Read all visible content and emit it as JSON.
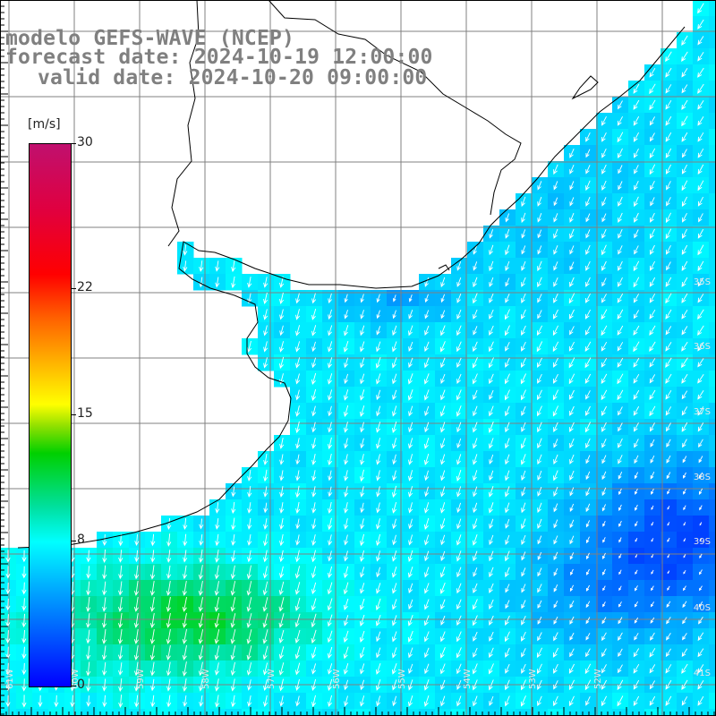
{
  "title": {
    "model": "modelo GEFS-WAVE (NCEP)",
    "forecast": "forecast date: 2024-10-19 12:00:00",
    "valid": "valid date: 2024-10-20 09:00:00"
  },
  "colorbar": {
    "units": "[m/s]",
    "ticks": [
      {
        "label": "30",
        "value": 30
      },
      {
        "label": "22",
        "value": 22
      },
      {
        "label": "15",
        "value": 15
      },
      {
        "label": "8",
        "value": 8
      },
      {
        "label": "0",
        "value": 0
      }
    ],
    "range": [
      0,
      30
    ]
  },
  "map": {
    "lat_labels": [
      "35S",
      "36S",
      "37S",
      "38S",
      "39S",
      "40S",
      "41S"
    ],
    "lon_labels": [
      "61W",
      "60W",
      "59W",
      "58W",
      "57W",
      "56W",
      "55W",
      "54W",
      "53W",
      "52W"
    ],
    "field": "wind speed and direction",
    "colors": {
      "land": "#ffffff",
      "coast": "#000000",
      "grid": "#808080",
      "arrows": "#ffffff"
    }
  }
}
